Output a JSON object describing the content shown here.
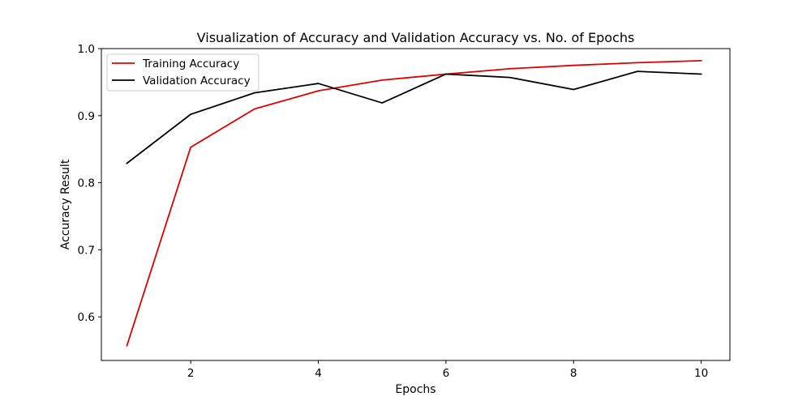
{
  "chart_data": {
    "type": "line",
    "title": "Visualization of Accuracy and Validation Accuracy vs. No. of Epochs",
    "xlabel": "Epochs",
    "ylabel": "Accuracy Result",
    "x": [
      1,
      2,
      3,
      4,
      5,
      6,
      7,
      8,
      9,
      10
    ],
    "xlim": [
      0.6,
      10.45
    ],
    "ylim": [
      0.535,
      1.0
    ],
    "xticks": [
      2,
      4,
      6,
      8,
      10
    ],
    "yticks": [
      0.6,
      0.7,
      0.8,
      0.9,
      1.0
    ],
    "ytick_labels": [
      "0.6",
      "0.7",
      "0.8",
      "0.9",
      "1.0"
    ],
    "grid": false,
    "legend_position": "upper-left",
    "series": [
      {
        "name": "Training Accuracy",
        "color": "#e00000",
        "values": [
          0.557,
          0.853,
          0.91,
          0.937,
          0.953,
          0.962,
          0.97,
          0.975,
          0.979,
          0.982
        ]
      },
      {
        "name": "Validation Accuracy",
        "color": "#000000",
        "values": [
          0.829,
          0.902,
          0.934,
          0.948,
          0.919,
          0.962,
          0.957,
          0.939,
          0.966,
          0.962
        ]
      }
    ]
  }
}
